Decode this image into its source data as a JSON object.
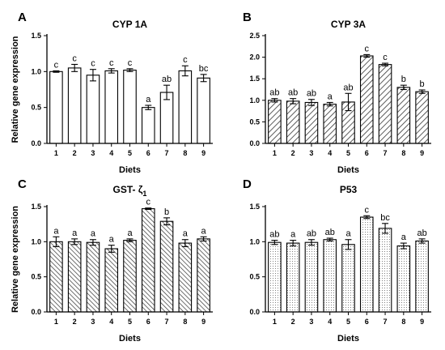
{
  "chart_data": [
    {
      "type": "bar",
      "panel": "A",
      "title": "CYP 1A",
      "xlabel": "Diets",
      "ylabel": "Relative gene expression",
      "ylim": [
        0,
        1.5
      ],
      "yticks": [
        "0.0",
        "0.5",
        "1.0",
        "1.5"
      ],
      "categories": [
        "1",
        "2",
        "3",
        "4",
        "5",
        "6",
        "7",
        "8",
        "9"
      ],
      "values": [
        1.0,
        1.05,
        0.95,
        1.01,
        1.02,
        0.5,
        0.71,
        1.01,
        0.91
      ],
      "errors": [
        0.01,
        0.05,
        0.08,
        0.03,
        0.02,
        0.03,
        0.1,
        0.07,
        0.05
      ],
      "labels": [
        "c",
        "c",
        "c",
        "c",
        "c",
        "a",
        "ab",
        "c",
        "bc"
      ],
      "pattern": "none"
    },
    {
      "type": "bar",
      "panel": "B",
      "title": "CYP 3A",
      "xlabel": "Diets",
      "ylabel": "",
      "ylim": [
        0,
        2.5
      ],
      "yticks": [
        "0.0",
        "0.5",
        "1.0",
        "1.5",
        "2.0",
        "2.5"
      ],
      "categories": [
        "1",
        "2",
        "3",
        "4",
        "5",
        "6",
        "7",
        "8",
        "9"
      ],
      "values": [
        1.0,
        0.98,
        0.95,
        0.91,
        0.96,
        2.03,
        1.83,
        1.3,
        1.2
      ],
      "errors": [
        0.04,
        0.06,
        0.07,
        0.04,
        0.2,
        0.03,
        0.03,
        0.05,
        0.04
      ],
      "labels": [
        "ab",
        "ab",
        "ab",
        "a",
        "ab",
        "c",
        "c",
        "b",
        "b"
      ],
      "pattern": "hatch"
    },
    {
      "type": "bar",
      "panel": "C",
      "title": "GST- ζ",
      "title_sub": "1",
      "xlabel": "Diets",
      "ylabel": "Relative gene expression",
      "ylim": [
        0,
        1.5
      ],
      "yticks": [
        "0.0",
        "0.5",
        "1.0",
        "1.5"
      ],
      "categories": [
        "1",
        "2",
        "3",
        "4",
        "5",
        "6",
        "7",
        "8",
        "9"
      ],
      "values": [
        1.0,
        1.0,
        0.99,
        0.9,
        1.02,
        1.47,
        1.29,
        0.98,
        1.04
      ],
      "errors": [
        0.07,
        0.04,
        0.04,
        0.05,
        0.02,
        0.01,
        0.05,
        0.05,
        0.03
      ],
      "labels": [
        "a",
        "a",
        "a",
        "a",
        "a",
        "c",
        "b",
        "a",
        "a"
      ],
      "pattern": "hatch-dense"
    },
    {
      "type": "bar",
      "panel": "D",
      "title": "P53",
      "xlabel": "Diets",
      "ylabel": "",
      "ylim": [
        0,
        1.5
      ],
      "yticks": [
        "0.0",
        "0.5",
        "1.0",
        "1.5"
      ],
      "categories": [
        "1",
        "2",
        "3",
        "4",
        "5",
        "6",
        "7",
        "8",
        "9"
      ],
      "values": [
        0.99,
        0.98,
        0.99,
        1.03,
        0.96,
        1.35,
        1.19,
        0.94,
        1.01
      ],
      "errors": [
        0.03,
        0.04,
        0.04,
        0.02,
        0.07,
        0.02,
        0.07,
        0.04,
        0.03
      ],
      "labels": [
        "ab",
        "a",
        "ab",
        "ab",
        "a",
        "c",
        "bc",
        "a",
        "ab"
      ],
      "pattern": "dots"
    }
  ]
}
